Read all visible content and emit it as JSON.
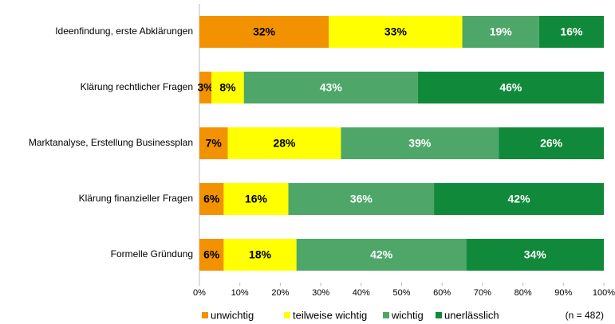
{
  "chart_data": {
    "type": "stacked_barh",
    "categories": [
      "Ideenfindung, erste Abklärungen",
      "Klärung rechtlicher Fragen",
      "Marktanalyse, Erstellung Businessplan",
      "Klärung finanzieller Fragen",
      "Formelle Gründung"
    ],
    "series": [
      {
        "name": "unwichtig",
        "color": "#f39200",
        "values": [
          32,
          3,
          7,
          6,
          6
        ],
        "value_labels": [
          "32%",
          "3%",
          "7%",
          "6%",
          "6%"
        ]
      },
      {
        "name": "teilweise wichtig",
        "color": "#ffff00",
        "values": [
          33,
          8,
          28,
          16,
          18
        ],
        "value_labels": [
          "33%",
          "8%",
          "28%",
          "16%",
          "18%"
        ]
      },
      {
        "name": "wichtig",
        "color": "#4ea769",
        "values": [
          19,
          43,
          39,
          36,
          42
        ],
        "value_labels": [
          "19%",
          "43%",
          "39%",
          "36%",
          "42%"
        ]
      },
      {
        "name": "unerlässlich",
        "color": "#108a3a",
        "values": [
          16,
          46,
          26,
          42,
          34
        ],
        "value_labels": [
          "16%",
          "46%",
          "26%",
          "42%",
          "34%"
        ]
      }
    ],
    "xlim": [
      0,
      100
    ],
    "xticks": [
      {
        "value": 0,
        "label": "0%"
      },
      {
        "value": 10,
        "label": "10%"
      },
      {
        "value": 20,
        "label": "20%"
      },
      {
        "value": 30,
        "label": "30%"
      },
      {
        "value": 40,
        "label": "40%"
      },
      {
        "value": 50,
        "label": "50%"
      },
      {
        "value": 60,
        "label": "60%"
      },
      {
        "value": 70,
        "label": "70%"
      },
      {
        "value": 80,
        "label": "80%"
      },
      {
        "value": 90,
        "label": "90%"
      },
      {
        "value": 100,
        "label": "100%"
      }
    ],
    "annotation": "(n = 482)",
    "legend": "bottom"
  }
}
